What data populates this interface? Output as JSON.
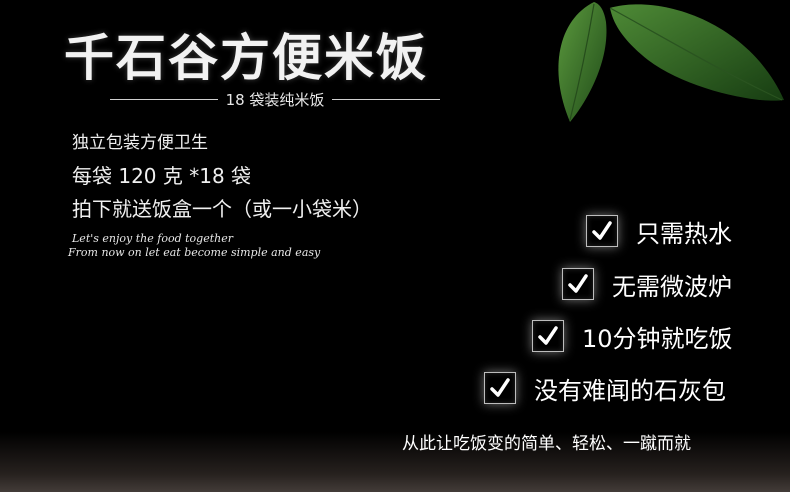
{
  "title": "千石谷方便米饭",
  "subtitle": "18 袋装纯米饭",
  "specs": [
    "独立包装方便卫生",
    "每袋 120 克 *18 袋",
    "拍下就送饭盒一个（或一小袋米）"
  ],
  "script_lines": [
    "Let's enjoy the food together",
    "From now on let eat become simple and easy"
  ],
  "features": [
    "只需热水",
    "无需微波炉",
    "10分钟就吃饭",
    "没有难闻的石灰包"
  ],
  "tagline": "从此让吃饭变的简单、轻松、一蹴而就",
  "colors": {
    "background": "#000000",
    "text": "#ffffff",
    "leaf": "#3f7a2e"
  }
}
